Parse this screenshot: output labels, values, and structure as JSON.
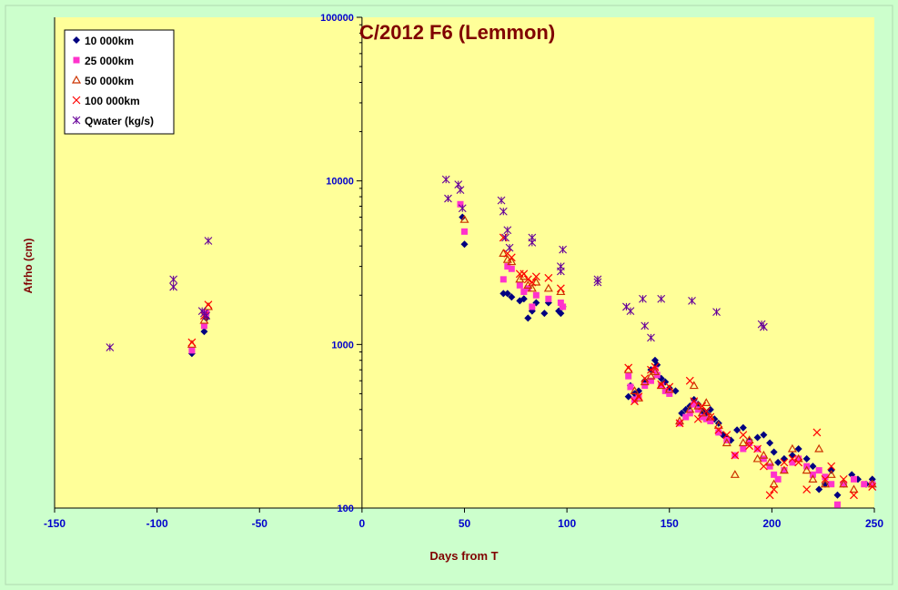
{
  "chart_data": {
    "type": "scatter",
    "title": "C/2012 F6 (Lemmon)",
    "xlabel": "Days from  T",
    "ylabel": "Afrho (cm)",
    "xlim": [
      -150,
      250
    ],
    "ylim": [
      100,
      100000
    ],
    "yscale": "log",
    "grid": false,
    "legend_position": "top-left",
    "x_ticks": [
      "-150",
      "-100",
      "-50",
      "0",
      "50",
      "100",
      "150",
      "200",
      "250"
    ],
    "y_ticks": [
      "100",
      "1000",
      "10000",
      "100000"
    ],
    "colors": {
      "background": "#ccffcc",
      "plot_area": "#ffff99",
      "title": "#800000",
      "axis_label": "#800000",
      "tick_label": "#0000cc"
    },
    "series": [
      {
        "name": "10 000km",
        "marker": "diamond",
        "color": "#000080",
        "x": [
          -83,
          -77,
          -76,
          49,
          50,
          69,
          71,
          73,
          77,
          79,
          81,
          83,
          85,
          89,
          91,
          96,
          97,
          98,
          130,
          131,
          133,
          135,
          138,
          141,
          143,
          144,
          146,
          148,
          150,
          153,
          156,
          158,
          160,
          162,
          164,
          166,
          168,
          170,
          172,
          174,
          176,
          178,
          180,
          183,
          186,
          189,
          193,
          196,
          199,
          201,
          203,
          206,
          210,
          213,
          217,
          220,
          223,
          226,
          229,
          232,
          235,
          239,
          242,
          246,
          249
        ],
        "y": [
          880,
          1200,
          1450,
          6000,
          4100,
          2050,
          2050,
          1950,
          1850,
          1900,
          1450,
          1600,
          1800,
          1550,
          1800,
          1600,
          1550,
          1700,
          480,
          560,
          500,
          520,
          600,
          700,
          800,
          750,
          620,
          590,
          540,
          520,
          380,
          400,
          420,
          460,
          430,
          390,
          380,
          400,
          350,
          330,
          280,
          270,
          260,
          300,
          310,
          260,
          270,
          280,
          250,
          220,
          190,
          200,
          210,
          230,
          200,
          180,
          130,
          140,
          170,
          120,
          140,
          160,
          150,
          140,
          150
        ]
      },
      {
        "name": "25 000km",
        "marker": "square",
        "color": "#ff33cc",
        "x": [
          -83,
          -77,
          -76,
          48,
          50,
          69,
          71,
          73,
          77,
          79,
          81,
          83,
          85,
          91,
          97,
          98,
          130,
          131,
          133,
          135,
          138,
          141,
          143,
          144,
          146,
          148,
          150,
          155,
          158,
          160,
          162,
          164,
          166,
          168,
          170,
          174,
          178,
          182,
          186,
          189,
          193,
          196,
          199,
          201,
          203,
          206,
          210,
          213,
          217,
          220,
          223,
          226,
          229,
          232,
          235,
          240,
          245,
          249
        ],
        "y": [
          920,
          1300,
          1550,
          7200,
          4900,
          2500,
          3000,
          2900,
          2300,
          2100,
          2200,
          1700,
          2000,
          1900,
          1800,
          1700,
          640,
          550,
          460,
          480,
          560,
          600,
          700,
          650,
          560,
          520,
          500,
          330,
          360,
          380,
          430,
          400,
          360,
          350,
          340,
          290,
          260,
          210,
          230,
          250,
          230,
          200,
          180,
          160,
          150,
          170,
          190,
          200,
          180,
          160,
          170,
          155,
          140,
          105,
          140,
          150,
          140,
          140
        ]
      },
      {
        "name": "50 000km",
        "marker": "triangle",
        "color": "#cc3300",
        "x": [
          -83,
          -77,
          -75,
          50,
          69,
          71,
          73,
          77,
          79,
          81,
          83,
          85,
          91,
          97,
          130,
          133,
          135,
          138,
          141,
          143,
          146,
          150,
          155,
          160,
          162,
          164,
          166,
          168,
          170,
          174,
          178,
          182,
          186,
          189,
          193,
          196,
          199,
          201,
          206,
          210,
          213,
          217,
          220,
          223,
          226,
          229,
          235,
          240,
          249
        ],
        "y": [
          1000,
          1400,
          1700,
          5800,
          3600,
          3300,
          3200,
          2500,
          2600,
          2300,
          2200,
          2400,
          2200,
          2100,
          700,
          520,
          470,
          590,
          640,
          680,
          560,
          530,
          340,
          400,
          560,
          420,
          380,
          440,
          360,
          320,
          250,
          160,
          250,
          260,
          200,
          210,
          190,
          140,
          170,
          230,
          200,
          170,
          150,
          230,
          140,
          160,
          140,
          130,
          140
        ]
      },
      {
        "name": "100 000km",
        "marker": "x",
        "color": "#ff0000",
        "x": [
          -83,
          -77,
          -75,
          69,
          71,
          73,
          77,
          79,
          81,
          83,
          85,
          91,
          97,
          130,
          133,
          135,
          138,
          141,
          143,
          146,
          150,
          155,
          160,
          162,
          164,
          166,
          168,
          170,
          174,
          178,
          182,
          186,
          189,
          193,
          196,
          199,
          201,
          206,
          210,
          213,
          217,
          222,
          226,
          229,
          235,
          240,
          249
        ],
        "y": [
          1030,
          1500,
          1750,
          4500,
          3600,
          3400,
          2700,
          2700,
          2500,
          2400,
          2600,
          2550,
          2200,
          720,
          450,
          480,
          620,
          700,
          730,
          570,
          550,
          330,
          600,
          450,
          350,
          420,
          390,
          360,
          300,
          280,
          210,
          280,
          240,
          230,
          180,
          120,
          130,
          190,
          200,
          190,
          130,
          290,
          150,
          180,
          150,
          120,
          135
        ]
      },
      {
        "name": "Qwater (kg/s)",
        "marker": "asterisk",
        "color": "#660099",
        "x": [
          -123,
          -92,
          -92,
          -78,
          -77,
          -76,
          -75,
          41,
          42,
          47,
          48,
          49,
          68,
          69,
          70,
          71,
          72,
          83,
          83,
          97,
          97,
          98,
          115,
          115,
          129,
          131,
          137,
          138,
          141,
          146,
          161,
          173,
          195,
          196
        ],
        "y": [
          960,
          2500,
          2250,
          1600,
          1550,
          1500,
          4300,
          10200,
          7800,
          9500,
          8800,
          6800,
          7600,
          6500,
          4500,
          5000,
          3900,
          4500,
          4200,
          3000,
          2800,
          3800,
          2500,
          2400,
          1700,
          1600,
          1900,
          1300,
          1100,
          1900,
          1850,
          1580,
          1330,
          1280
        ]
      }
    ]
  }
}
